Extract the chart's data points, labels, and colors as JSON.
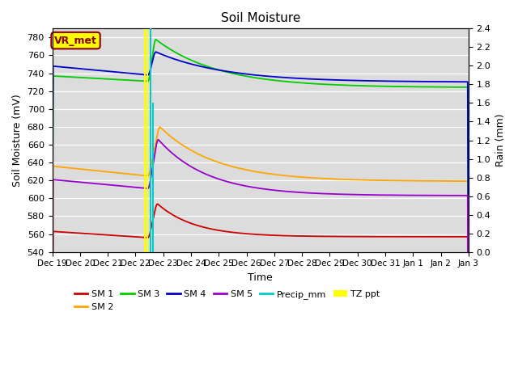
{
  "title": "Soil Moisture",
  "xlabel": "Time",
  "ylabel_left": "Soil Moisture (mV)",
  "ylabel_right": "Rain (mm)",
  "ylim_left": [
    540,
    790
  ],
  "ylim_right": [
    0.0,
    2.4
  ],
  "yticks_left": [
    540,
    560,
    580,
    600,
    620,
    640,
    660,
    680,
    700,
    720,
    740,
    760,
    780
  ],
  "yticks_right": [
    0.0,
    0.2,
    0.4,
    0.6,
    0.8,
    1.0,
    1.2,
    1.4,
    1.6,
    1.8,
    2.0,
    2.2,
    2.4
  ],
  "annotation_text": "VR_met",
  "annotation_color": "#8B0000",
  "annotation_bg": "#FFFF00",
  "bg_color": "#DCDCDC",
  "line_colors": {
    "SM1": "#CC0000",
    "SM2": "#FFA500",
    "SM3": "#00CC00",
    "SM4": "#0000CC",
    "SM5": "#9900CC",
    "Precip": "#00CCCC",
    "TZ": "#FFFF00"
  },
  "x_tick_labels": [
    "Dec 19",
    "Dec 20",
    "Dec 21",
    "Dec 22",
    "Dec 23",
    "Dec 24",
    "Dec 25",
    "Dec 26",
    "Dec 27",
    "Dec 28",
    "Dec 29",
    "Dec 30",
    "Dec 31",
    "Jan 1",
    "Jan 2",
    "Jan 3"
  ],
  "n_points": 500,
  "total_days": 15
}
